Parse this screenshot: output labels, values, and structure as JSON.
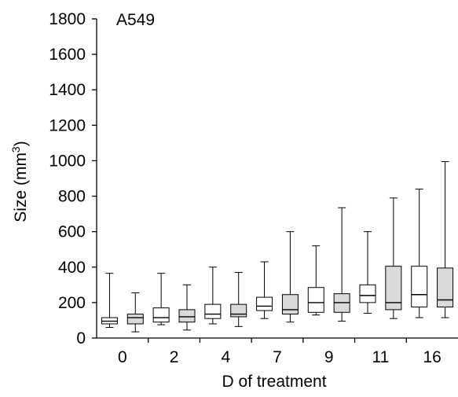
{
  "chart_data": {
    "type": "box",
    "panel_label": "A549",
    "xlabel": "D of treatment",
    "ylabel": "Size (mm3)",
    "ylabel_text": "Size (mm",
    "ylabel_superscript": "3",
    "ylabel_suffix": ")",
    "ylim": [
      0,
      1800
    ],
    "yticks": [
      0,
      200,
      400,
      600,
      800,
      1000,
      1200,
      1400,
      1600,
      1800
    ],
    "yticklabels": [
      "0",
      "200",
      "400",
      "600",
      "800",
      "1000",
      "1200",
      "1400",
      "1600",
      "1800"
    ],
    "categories": [
      "0",
      "2",
      "4",
      "7",
      "9",
      "11",
      "16"
    ],
    "box_colors": {
      "white": "#ffffff",
      "gray": "#d9d9d9"
    },
    "grid": false,
    "boxes": [
      {
        "day": "0",
        "fill": "white",
        "min": 60,
        "q1": 80,
        "median": 95,
        "q3": 115,
        "max": 365
      },
      {
        "day": "0",
        "fill": "gray",
        "min": 35,
        "q1": 80,
        "median": 115,
        "q3": 135,
        "max": 255
      },
      {
        "day": "2",
        "fill": "white",
        "min": 75,
        "q1": 90,
        "median": 115,
        "q3": 170,
        "max": 365
      },
      {
        "day": "2",
        "fill": "gray",
        "min": 45,
        "q1": 90,
        "median": 120,
        "q3": 160,
        "max": 300
      },
      {
        "day": "4",
        "fill": "white",
        "min": 80,
        "q1": 110,
        "median": 135,
        "q3": 190,
        "max": 400
      },
      {
        "day": "4",
        "fill": "gray",
        "min": 65,
        "q1": 120,
        "median": 135,
        "q3": 190,
        "max": 370
      },
      {
        "day": "7",
        "fill": "white",
        "min": 110,
        "q1": 155,
        "median": 180,
        "q3": 230,
        "max": 430
      },
      {
        "day": "7",
        "fill": "gray",
        "min": 90,
        "q1": 135,
        "median": 160,
        "q3": 245,
        "max": 600
      },
      {
        "day": "9",
        "fill": "white",
        "min": 130,
        "q1": 145,
        "median": 200,
        "q3": 285,
        "max": 520
      },
      {
        "day": "9",
        "fill": "gray",
        "min": 95,
        "q1": 145,
        "median": 200,
        "q3": 250,
        "max": 735
      },
      {
        "day": "11",
        "fill": "white",
        "min": 140,
        "q1": 200,
        "median": 240,
        "q3": 300,
        "max": 600
      },
      {
        "day": "11",
        "fill": "gray",
        "min": 110,
        "q1": 160,
        "median": 200,
        "q3": 405,
        "max": 790
      },
      {
        "day": "16",
        "fill": "white",
        "min": 115,
        "q1": 175,
        "median": 245,
        "q3": 405,
        "max": 840
      },
      {
        "day": "16",
        "fill": "gray",
        "min": 115,
        "q1": 175,
        "median": 215,
        "q3": 395,
        "max": 995
      }
    ]
  }
}
